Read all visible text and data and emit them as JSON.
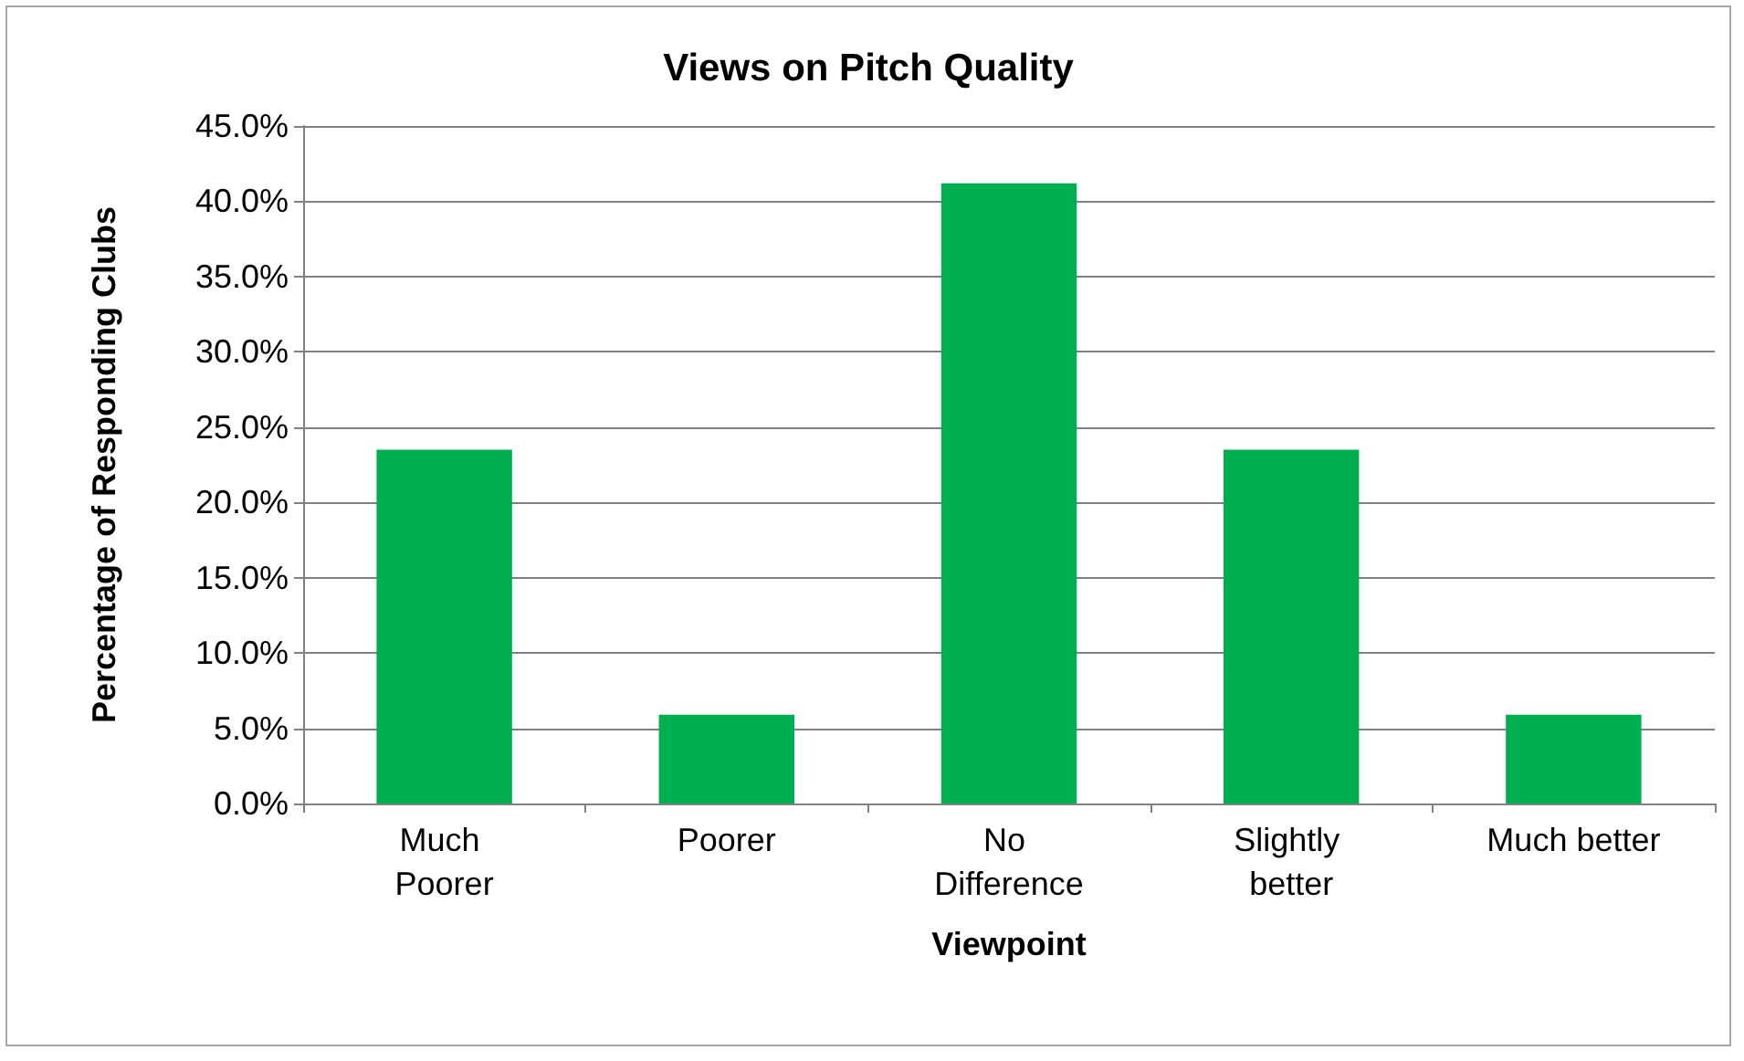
{
  "chart_data": {
    "type": "bar",
    "title": "Views on Pitch Quality",
    "xlabel": "Viewpoint",
    "ylabel": "Percentage of Responding Clubs",
    "categories": [
      "Much Poorer",
      "Poorer",
      "No Difference",
      "Slightly better",
      "Much better"
    ],
    "values": [
      23.5,
      5.9,
      41.2,
      23.5,
      5.9
    ],
    "color": "#00b050",
    "ylim": [
      0,
      45
    ],
    "yticks": [
      {
        "value": 0,
        "label": "0.0%"
      },
      {
        "value": 5,
        "label": "5.0%"
      },
      {
        "value": 10,
        "label": "10.0%"
      },
      {
        "value": 15,
        "label": "15.0%"
      },
      {
        "value": 20,
        "label": "20.0%"
      },
      {
        "value": 25,
        "label": "25.0%"
      },
      {
        "value": 30,
        "label": "30.0%"
      },
      {
        "value": 35,
        "label": "35.0%"
      },
      {
        "value": 40,
        "label": "40.0%"
      },
      {
        "value": 45,
        "label": "45.0%"
      }
    ],
    "grid": "y"
  }
}
